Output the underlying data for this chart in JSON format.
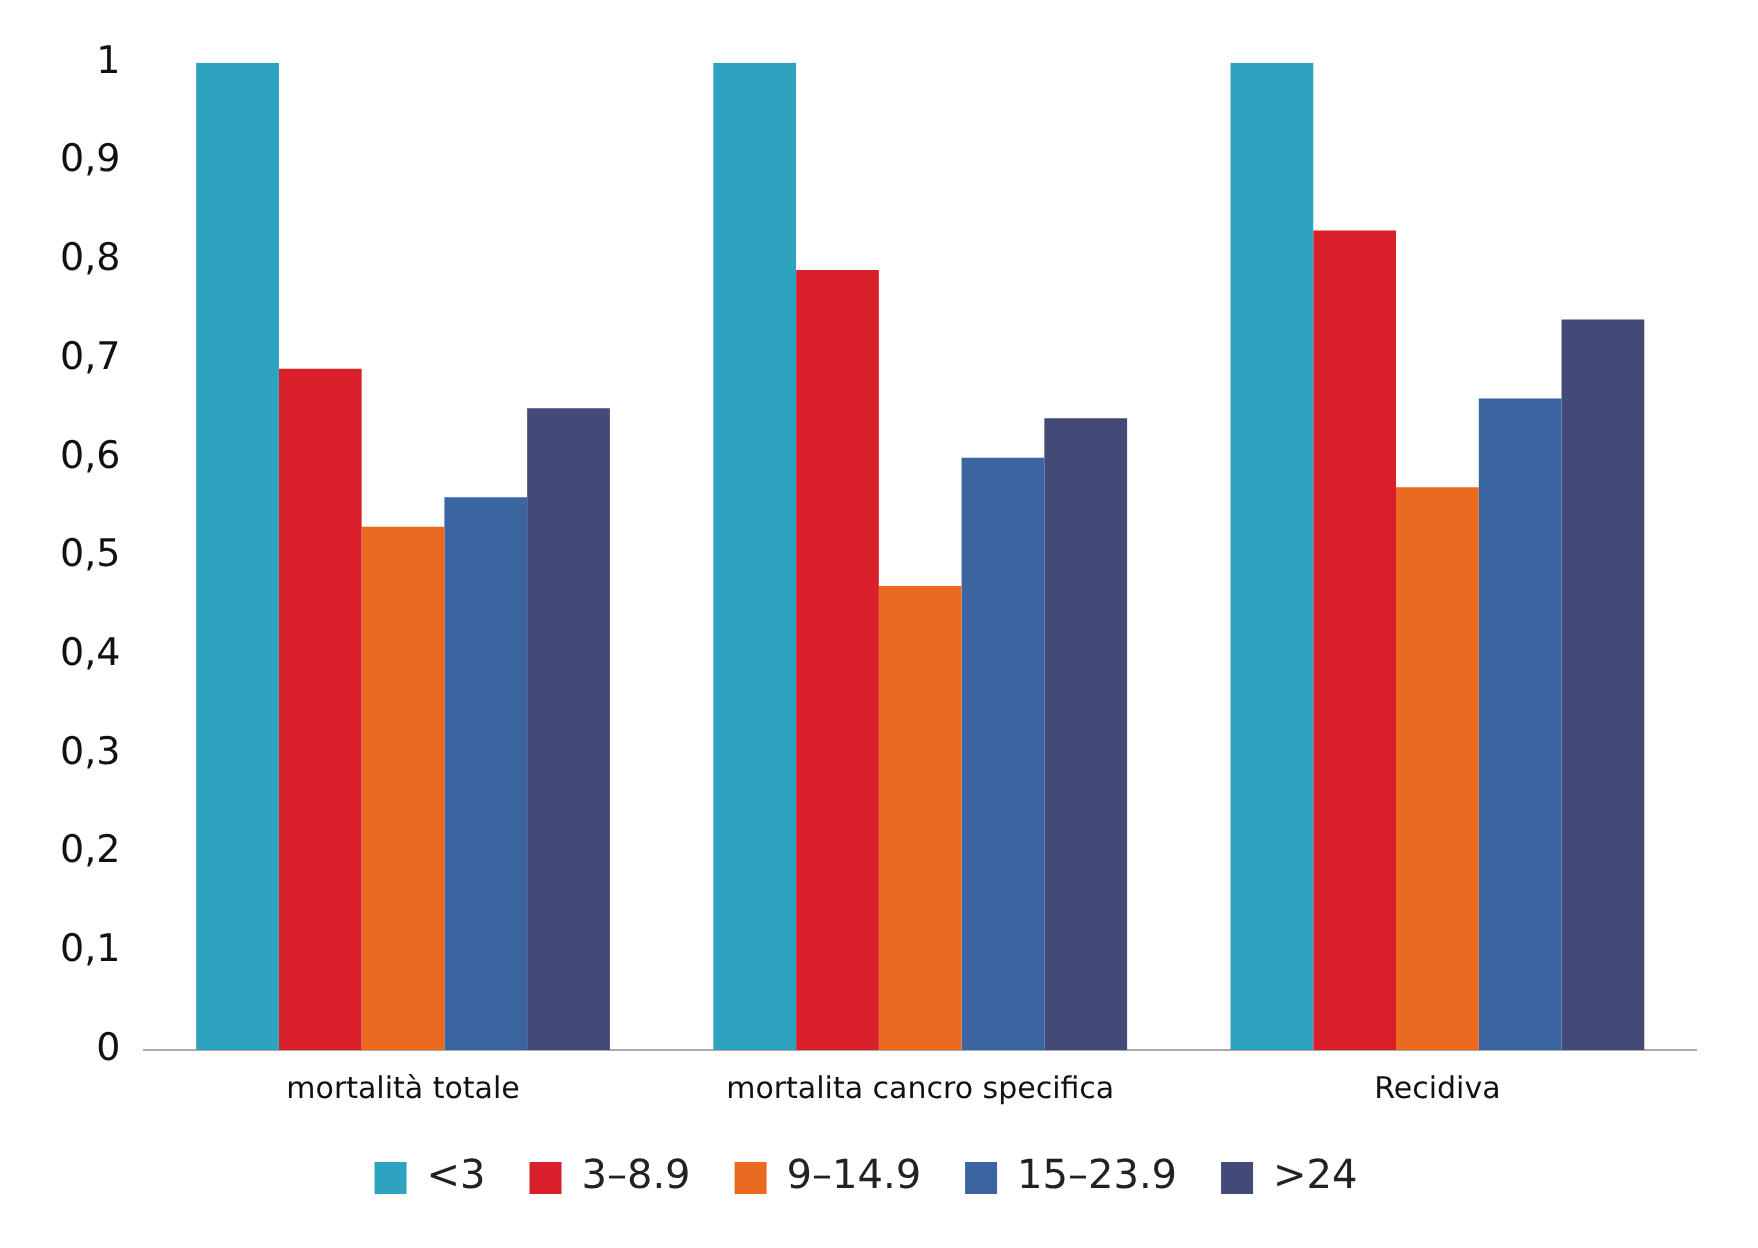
{
  "chart_data": {
    "type": "bar",
    "categories": [
      "mortalità totale",
      "mortalita cancro specifica",
      "Recidiva"
    ],
    "series": [
      {
        "name": "<3",
        "color": "#2ea3c0",
        "values": [
          1,
          1,
          1
        ]
      },
      {
        "name": "3–8.9",
        "color": "#d9202a",
        "values": [
          0.69,
          0.79,
          0.83
        ]
      },
      {
        "name": "9–14.9",
        "color": "#ea6a1f",
        "values": [
          0.53,
          0.47,
          0.57
        ]
      },
      {
        "name": "15–23.9",
        "color": "#3a65a0",
        "values": [
          0.56,
          0.6,
          0.66
        ]
      },
      {
        "name": ">24",
        "color": "#444a78",
        "values": [
          0.65,
          0.64,
          0.74
        ]
      }
    ],
    "ylim": [
      0,
      1
    ],
    "yticks": [
      0,
      {
        "value": 0.1,
        "label": "0,1"
      },
      {
        "value": 0.2,
        "label": "0,2"
      },
      {
        "value": 0.3,
        "label": "0,3"
      },
      {
        "value": 0.4,
        "label": "0,4"
      },
      {
        "value": 0.5,
        "label": "0,5"
      },
      {
        "value": 0.6,
        "label": "0,6"
      },
      {
        "value": 0.7,
        "label": "0,7"
      },
      {
        "value": 0.8,
        "label": "0,8"
      },
      {
        "value": 0.9,
        "label": "0,9"
      },
      1
    ],
    "grid": false,
    "legend": "bottom"
  }
}
